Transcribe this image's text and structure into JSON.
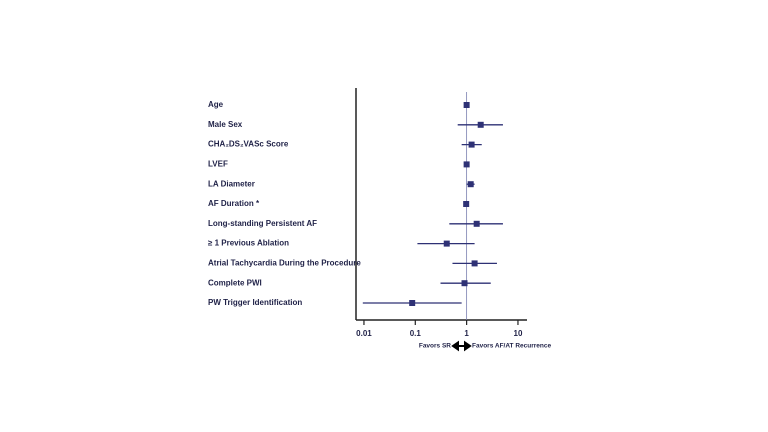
{
  "chart_data": {
    "type": "forest",
    "categories": [
      "Age",
      "Male Sex",
      "CHA₂DS₂VASc Score",
      "LVEF",
      "LA Diameter",
      "AF Duration *",
      "Long-standing Persistent AF",
      "≥ 1 Previous Ablation",
      "Atrial Tachycardia During the Procedure",
      "Complete PWI",
      "PW Trigger Identification"
    ],
    "values": [
      1.0,
      1.88,
      1.25,
      1.0,
      1.2,
      0.98,
      1.57,
      0.41,
      1.43,
      0.91,
      0.087
    ],
    "lower": [
      0.98,
      0.67,
      0.8,
      0.98,
      1.0,
      0.96,
      0.46,
      0.11,
      0.53,
      0.31,
      0.0095
    ],
    "upper": [
      1.02,
      5.1,
      1.97,
      1.02,
      1.43,
      1.0,
      5.1,
      1.43,
      3.9,
      2.95,
      0.8
    ],
    "color": "#2e3175",
    "xlim": [
      0.007,
      15
    ],
    "xticks": [
      0.01,
      0.1,
      1,
      10
    ],
    "log_x": true,
    "reference": 1,
    "x_label_left": "Favors SR",
    "x_label_right": "Favors AF/AT Recurrence"
  }
}
